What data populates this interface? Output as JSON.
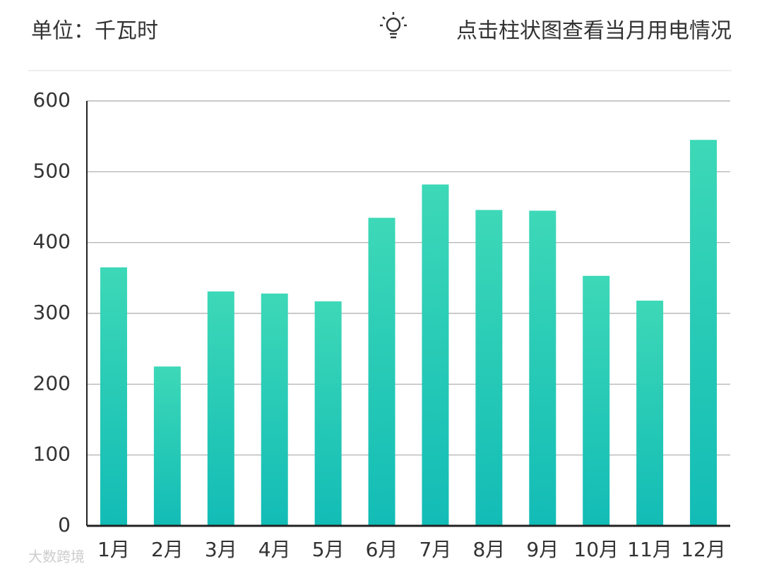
{
  "header": {
    "unit": "单位：千瓦时",
    "hint": "点击柱状图查看当月用电情况"
  },
  "chart_data": {
    "type": "bar",
    "categories": [
      "1月",
      "2月",
      "3月",
      "4月",
      "5月",
      "6月",
      "7月",
      "8月",
      "9月",
      "10月",
      "11月",
      "12月"
    ],
    "values": [
      365,
      225,
      331,
      328,
      317,
      435,
      482,
      446,
      445,
      353,
      318,
      545
    ],
    "gradient": [
      "#3dd8b7",
      "#12bcb6"
    ],
    "ylim": [
      0,
      600
    ],
    "yticks": [
      0,
      100,
      200,
      300,
      400,
      500,
      600
    ],
    "grid": true
  },
  "watermark": "大数跨境"
}
